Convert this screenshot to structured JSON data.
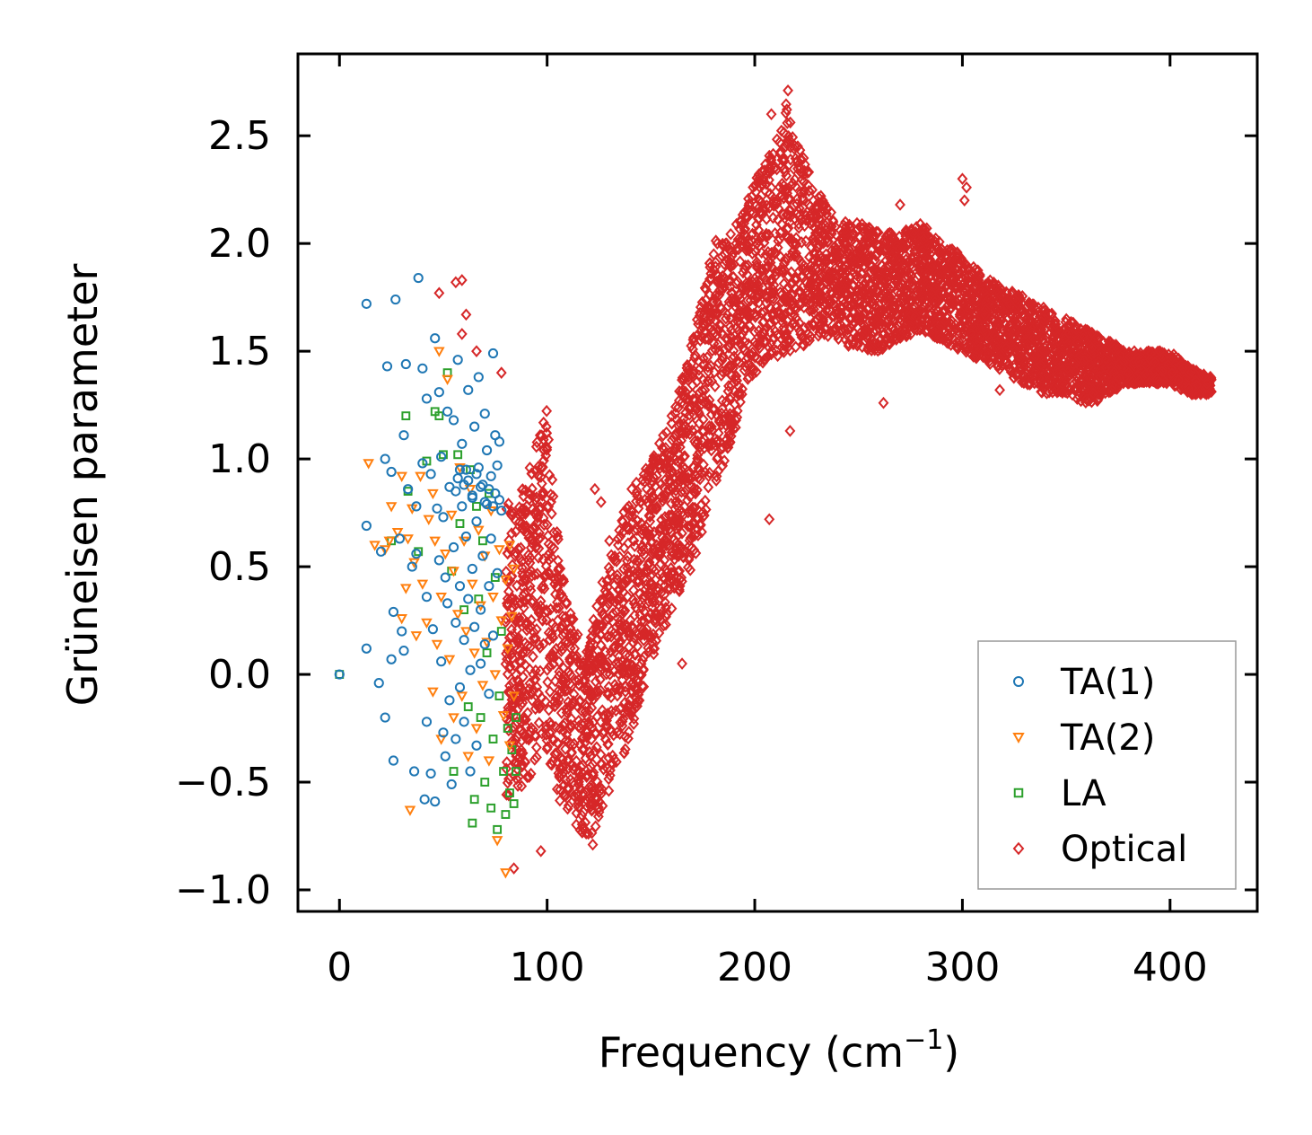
{
  "chart_data": {
    "type": "scatter",
    "title": "",
    "xlabel_main": "Frequency (cm",
    "xlabel_sup": "−1",
    "xlabel_tail": ")",
    "ylabel": "Grüneisen parameter",
    "xlim": [
      -20,
      442
    ],
    "ylim": [
      -1.1,
      2.88
    ],
    "xticks": [
      0,
      100,
      200,
      300,
      400
    ],
    "xtick_labels": [
      "0",
      "100",
      "200",
      "300",
      "400"
    ],
    "yticks": [
      -1.0,
      -0.5,
      0.0,
      0.5,
      1.0,
      1.5,
      2.0,
      2.5
    ],
    "ytick_labels": [
      "−1.0",
      "−0.5",
      "0.0",
      "0.5",
      "1.0",
      "1.5",
      "2.0",
      "2.5"
    ],
    "grid": false,
    "legend_position": "lower-right",
    "series": [
      {
        "name": "TA(1)",
        "marker": "circle",
        "color": "#1f77b4",
        "points": [
          [
            0,
            0.0
          ],
          [
            13,
            1.72
          ],
          [
            13,
            0.69
          ],
          [
            13,
            0.12
          ],
          [
            19,
            -0.04
          ],
          [
            20,
            0.57
          ],
          [
            22,
            1.0
          ],
          [
            22,
            -0.2
          ],
          [
            23,
            1.43
          ],
          [
            25,
            0.94
          ],
          [
            25,
            0.07
          ],
          [
            26,
            -0.4
          ],
          [
            26,
            0.29
          ],
          [
            27,
            1.74
          ],
          [
            29,
            0.63
          ],
          [
            30,
            0.2
          ],
          [
            31,
            0.11
          ],
          [
            31,
            1.11
          ],
          [
            32,
            1.44
          ],
          [
            33,
            0.86
          ],
          [
            35,
            0.5
          ],
          [
            36,
            -0.45
          ],
          [
            37,
            0.78
          ],
          [
            37,
            0.56
          ],
          [
            38,
            1.84
          ],
          [
            40,
            1.42
          ],
          [
            40,
            0.98
          ],
          [
            41,
            -0.58
          ],
          [
            42,
            -0.22
          ],
          [
            42,
            0.36
          ],
          [
            42,
            1.28
          ],
          [
            44,
            0.93
          ],
          [
            44,
            -0.46
          ],
          [
            45,
            0.21
          ],
          [
            46,
            1.56
          ],
          [
            46,
            -0.59
          ],
          [
            47,
            0.77
          ],
          [
            48,
            1.31
          ],
          [
            48,
            0.53
          ],
          [
            49,
            0.06
          ],
          [
            49,
            1.01
          ],
          [
            50,
            0.73
          ],
          [
            50,
            -0.27
          ],
          [
            51,
            0.45
          ],
          [
            51,
            -0.38
          ],
          [
            52,
            1.22
          ],
          [
            52,
            0.33
          ],
          [
            53,
            0.87
          ],
          [
            53,
            -0.12
          ],
          [
            54,
            -0.51
          ],
          [
            55,
            0.59
          ],
          [
            55,
            1.18
          ],
          [
            56,
            0.24
          ],
          [
            56,
            -0.3
          ],
          [
            57,
            0.91
          ],
          [
            57,
            1.46
          ],
          [
            58,
            0.41
          ],
          [
            58,
            -0.06
          ],
          [
            59,
            0.78
          ],
          [
            59,
            1.07
          ],
          [
            60,
            0.16
          ],
          [
            60,
            -0.22
          ],
          [
            61,
            0.64
          ],
          [
            61,
            0.95
          ],
          [
            62,
            1.32
          ],
          [
            62,
            0.35
          ],
          [
            63,
            0.02
          ],
          [
            63,
            -0.45
          ],
          [
            64,
            0.83
          ],
          [
            64,
            0.49
          ],
          [
            65,
            1.15
          ],
          [
            65,
            0.22
          ],
          [
            66,
            -0.33
          ],
          [
            66,
            0.71
          ],
          [
            67,
            0.96
          ],
          [
            67,
            1.38
          ],
          [
            68,
            0.3
          ],
          [
            68,
            0.05
          ],
          [
            69,
            0.88
          ],
          [
            69,
            0.55
          ],
          [
            70,
            1.21
          ],
          [
            70,
            0.14
          ],
          [
            71,
            0.79
          ],
          [
            71,
            1.04
          ],
          [
            72,
            0.41
          ],
          [
            72,
            -0.09
          ],
          [
            73,
            0.92
          ],
          [
            73,
            0.63
          ],
          [
            74,
            1.49
          ],
          [
            74,
            0.18
          ],
          [
            75,
            0.84
          ],
          [
            75,
            1.11
          ],
          [
            76,
            0.47
          ],
          [
            76,
            0.97
          ],
          [
            77,
            0.81
          ],
          [
            77,
            1.08
          ],
          [
            78,
            0.76
          ],
          [
            56,
            0.85
          ],
          [
            58,
            0.95
          ],
          [
            60,
            0.88
          ],
          [
            62,
            0.9
          ],
          [
            64,
            0.82
          ],
          [
            66,
            0.93
          ],
          [
            68,
            0.87
          ],
          [
            70,
            0.8
          ],
          [
            72,
            0.86
          ],
          [
            74,
            0.78
          ]
        ]
      },
      {
        "name": "TA(2)",
        "marker": "triangle-down",
        "color": "#ff7f0e",
        "points": [
          [
            14,
            0.98
          ],
          [
            17,
            0.6
          ],
          [
            22,
            0.58
          ],
          [
            24,
            0.62
          ],
          [
            25,
            0.78
          ],
          [
            28,
            0.66
          ],
          [
            30,
            0.92
          ],
          [
            30,
            0.26
          ],
          [
            32,
            0.4
          ],
          [
            33,
            0.63
          ],
          [
            34,
            -0.63
          ],
          [
            35,
            0.77
          ],
          [
            36,
            0.52
          ],
          [
            37,
            0.18
          ],
          [
            39,
            0.92
          ],
          [
            40,
            0.42
          ],
          [
            42,
            0.24
          ],
          [
            43,
            0.72
          ],
          [
            45,
            -0.08
          ],
          [
            45,
            0.84
          ],
          [
            46,
            0.62
          ],
          [
            47,
            0.14
          ],
          [
            48,
            1.5
          ],
          [
            49,
            0.36
          ],
          [
            49,
            -0.3
          ],
          [
            51,
            0.56
          ],
          [
            52,
            1.37
          ],
          [
            53,
            0.07
          ],
          [
            54,
            0.74
          ],
          [
            55,
            -0.2
          ],
          [
            55,
            0.48
          ],
          [
            57,
            0.28
          ],
          [
            58,
            0.96
          ],
          [
            59,
            -0.1
          ],
          [
            60,
            0.62
          ],
          [
            61,
            0.2
          ],
          [
            62,
            -0.38
          ],
          [
            63,
            0.86
          ],
          [
            64,
            0.42
          ],
          [
            65,
            0.1
          ],
          [
            66,
            -0.25
          ],
          [
            67,
            0.67
          ],
          [
            68,
            0.32
          ],
          [
            69,
            -0.05
          ],
          [
            70,
            0.55
          ],
          [
            71,
            0.15
          ],
          [
            72,
            -0.4
          ],
          [
            73,
            0.76
          ],
          [
            74,
            0.36
          ],
          [
            75,
            0.0
          ],
          [
            76,
            -0.77
          ],
          [
            77,
            0.58
          ],
          [
            78,
            0.25
          ],
          [
            79,
            -0.19
          ],
          [
            80,
            -0.92
          ],
          [
            80,
            0.44
          ],
          [
            81,
            0.12
          ],
          [
            82,
            -0.33
          ],
          [
            82,
            0.6
          ],
          [
            83,
            0.27
          ],
          [
            84,
            -0.1
          ],
          [
            84,
            0.49
          ]
        ]
      },
      {
        "name": "LA",
        "marker": "square",
        "color": "#2ca02c",
        "points": [
          [
            0,
            0.0
          ],
          [
            25,
            0.62
          ],
          [
            32,
            1.2
          ],
          [
            33,
            0.85
          ],
          [
            38,
            0.57
          ],
          [
            42,
            0.99
          ],
          [
            46,
            1.22
          ],
          [
            48,
            1.2
          ],
          [
            50,
            1.02
          ],
          [
            52,
            1.4
          ],
          [
            54,
            0.48
          ],
          [
            55,
            -0.45
          ],
          [
            57,
            1.02
          ],
          [
            58,
            0.7
          ],
          [
            60,
            0.3
          ],
          [
            62,
            -0.15
          ],
          [
            63,
            0.95
          ],
          [
            64,
            -0.69
          ],
          [
            65,
            -0.58
          ],
          [
            66,
            0.78
          ],
          [
            67,
            0.35
          ],
          [
            68,
            -0.2
          ],
          [
            69,
            0.62
          ],
          [
            70,
            -0.5
          ],
          [
            71,
            0.1
          ],
          [
            72,
            0.84
          ],
          [
            73,
            -0.62
          ],
          [
            74,
            -0.3
          ],
          [
            75,
            0.45
          ],
          [
            76,
            -0.72
          ],
          [
            77,
            -0.1
          ],
          [
            78,
            0.2
          ],
          [
            79,
            -0.45
          ],
          [
            80,
            -0.65
          ],
          [
            81,
            -0.25
          ],
          [
            82,
            -0.55
          ],
          [
            83,
            -0.35
          ],
          [
            84,
            -0.6
          ],
          [
            85,
            -0.2
          ],
          [
            85,
            -0.45
          ]
        ]
      },
      {
        "name": "Optical",
        "marker": "diamond",
        "color": "#d62728",
        "trend": {
          "x": [
            80,
            90,
            100,
            104,
            110,
            118,
            123,
            130,
            140,
            150,
            160,
            170,
            180,
            190,
            195,
            200,
            210,
            215,
            220,
            230,
            240,
            250,
            260,
            270,
            280,
            290,
            300,
            310,
            320,
            330,
            340,
            350,
            360,
            370,
            380,
            390,
            400,
            410,
            420
          ],
          "y_low": [
            -0.6,
            -0.5,
            -0.35,
            -0.55,
            -0.65,
            -0.75,
            -0.75,
            -0.55,
            -0.3,
            0.05,
            0.3,
            0.5,
            0.85,
            1.1,
            1.35,
            1.4,
            1.45,
            1.5,
            1.5,
            1.55,
            1.55,
            1.5,
            1.5,
            1.55,
            1.6,
            1.55,
            1.5,
            1.45,
            1.4,
            1.35,
            1.3,
            1.3,
            1.25,
            1.3,
            1.35,
            1.35,
            1.35,
            1.3,
            1.3
          ],
          "y_high": [
            0.8,
            0.9,
            1.25,
            0.75,
            0.35,
            0.1,
            0.3,
            0.55,
            0.85,
            1.0,
            1.2,
            1.55,
            2.0,
            2.1,
            2.15,
            2.3,
            2.5,
            2.65,
            2.5,
            2.25,
            2.1,
            2.1,
            2.05,
            2.05,
            2.1,
            2.0,
            1.95,
            1.85,
            1.8,
            1.75,
            1.7,
            1.65,
            1.6,
            1.55,
            1.5,
            1.5,
            1.5,
            1.42,
            1.38
          ]
        },
        "outliers": [
          [
            48,
            1.77
          ],
          [
            56,
            1.82
          ],
          [
            59,
            1.83
          ],
          [
            59,
            1.58
          ],
          [
            61,
            1.67
          ],
          [
            66,
            1.5
          ],
          [
            78,
            1.4
          ],
          [
            216,
            2.71
          ],
          [
            212,
            2.47
          ],
          [
            208,
            2.6
          ],
          [
            300,
            2.3
          ],
          [
            302,
            2.26
          ],
          [
            301,
            2.2
          ],
          [
            270,
            2.18
          ],
          [
            262,
            1.26
          ],
          [
            217,
            1.13
          ],
          [
            207,
            0.72
          ],
          [
            165,
            0.05
          ],
          [
            123,
            0.86
          ],
          [
            126,
            0.8
          ],
          [
            130,
            0.62
          ],
          [
            97,
            -0.82
          ],
          [
            84,
            -0.9
          ],
          [
            122,
            -0.79
          ],
          [
            193,
            2.1
          ],
          [
            150,
            0.96
          ],
          [
            150,
            0.77
          ],
          [
            160,
            1.2
          ],
          [
            160,
            0.55
          ],
          [
            168,
            1.38
          ],
          [
            172,
            1.57
          ],
          [
            318,
            1.32
          ],
          [
            365,
            1.27
          ],
          [
            380,
            1.4
          ],
          [
            395,
            1.5
          ]
        ]
      }
    ],
    "legend": [
      {
        "label": "TA(1)",
        "marker": "circle",
        "color": "#1f77b4"
      },
      {
        "label": "TA(2)",
        "marker": "triangle-down",
        "color": "#ff7f0e"
      },
      {
        "label": "LA",
        "marker": "square",
        "color": "#2ca02c"
      },
      {
        "label": "Optical",
        "marker": "diamond",
        "color": "#d62728"
      }
    ]
  }
}
